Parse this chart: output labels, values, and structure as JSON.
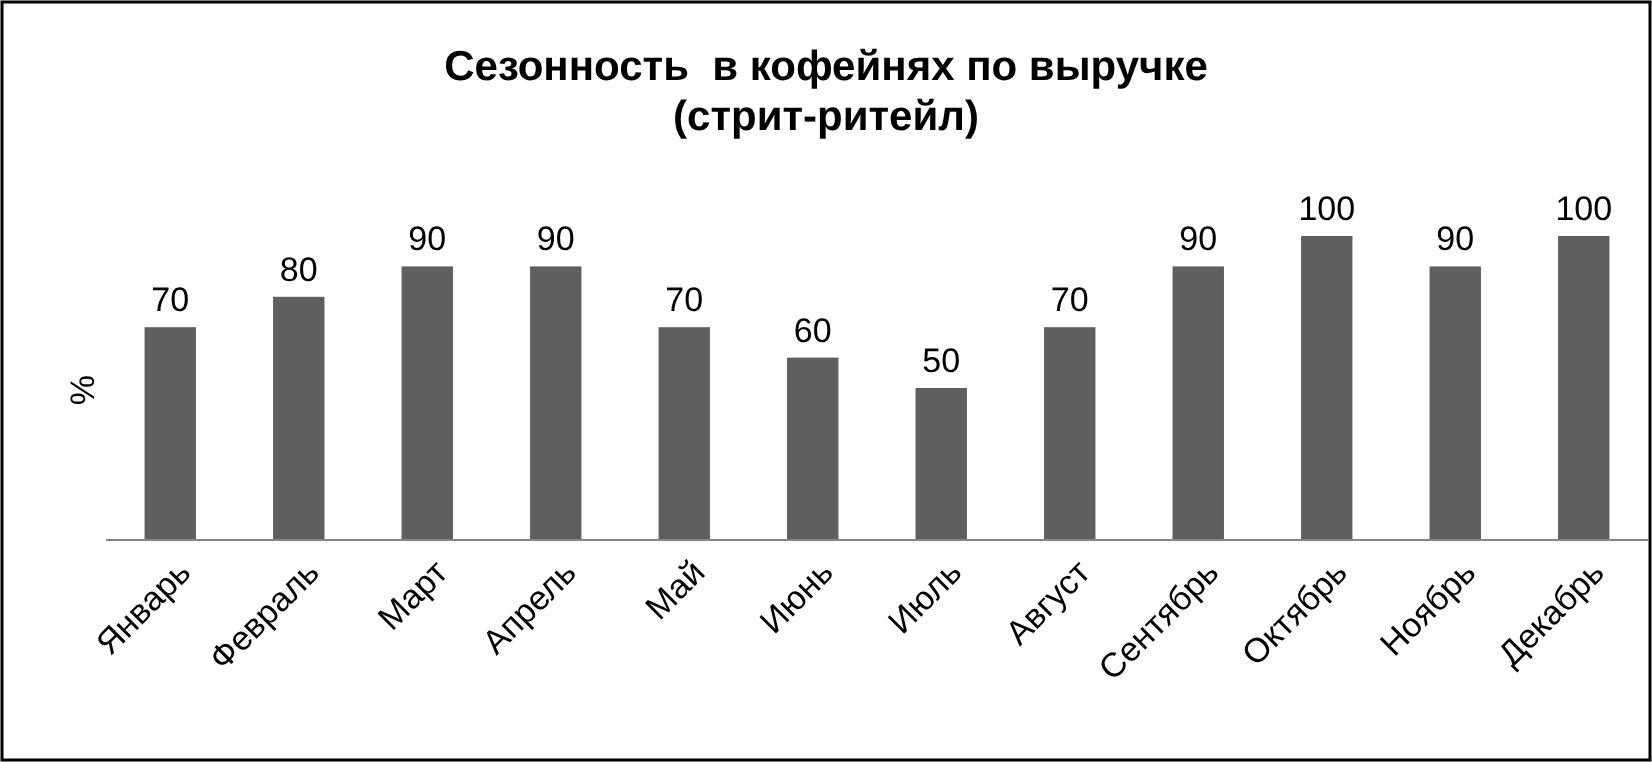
{
  "chart_data": {
    "type": "bar",
    "title": "Сезонность  в кофейнях по выручке\n(стрит-ритейл)",
    "ylabel": "%",
    "categories": [
      "Январь",
      "Февраль",
      "Март",
      "Апрель",
      "Май",
      "Июнь",
      "Июль",
      "Август",
      "Сентябрь",
      "Октябрь",
      "Ноябрь",
      "Декабрь"
    ],
    "values": [
      70,
      80,
      90,
      90,
      70,
      60,
      50,
      70,
      90,
      100,
      90,
      100
    ],
    "color": "#5f5f5f",
    "ylim": [
      0,
      100
    ],
    "data_labels": true
  }
}
